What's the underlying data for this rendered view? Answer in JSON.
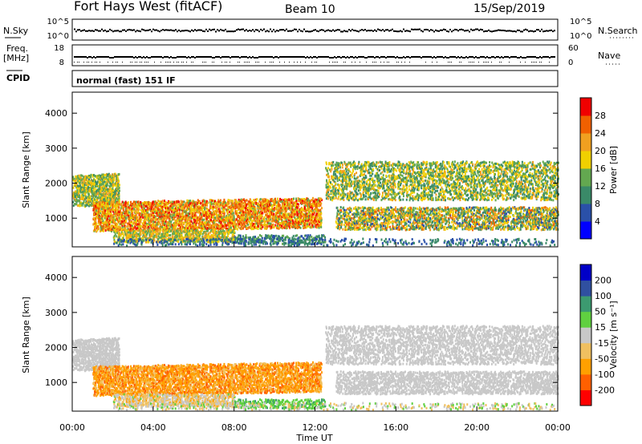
{
  "header": {
    "station": "Fort Hays West (fitACF)",
    "beam": "Beam 10",
    "date": "15/Sep/2019"
  },
  "noise_panel": {
    "left_label": "N.Sky",
    "right_label": "N.Search",
    "left_ticks": [
      "10^5",
      "10^0"
    ],
    "right_ticks": [
      "10^5",
      "10^0"
    ]
  },
  "freq_panel": {
    "left_label_1": "Freq.",
    "left_label_2": "[MHz]",
    "right_label": "Nave",
    "left_ticks": [
      "18",
      "8"
    ],
    "right_ticks": [
      "60",
      "0"
    ]
  },
  "cpid": {
    "label": "CPID",
    "text": "normal (fast) 151 IF"
  },
  "colors": {
    "power_scale": [
      "#0000ff",
      "#2a50a8",
      "#3a8a68",
      "#63a850",
      "#f0d000",
      "#f0a020",
      "#f06000",
      "#f00000"
    ],
    "velocity_scale": [
      "#ff0000",
      "#ff6000",
      "#ffa000",
      "#f0c060",
      "#c8c8c8",
      "#60d040",
      "#3c9a70",
      "#3050a0",
      "#0000c8"
    ]
  },
  "chart_data": [
    {
      "type": "heatmap",
      "name": "power",
      "ylabel": "Slant Range [km]",
      "yticks": [
        "4000",
        "3000",
        "2000",
        "1000"
      ],
      "ylim": [
        180,
        4600
      ],
      "xlim_hours": [
        0,
        24
      ],
      "colorbar": {
        "label": "Power [dB]",
        "ticks": [
          "28",
          "24",
          "20",
          "16",
          "12",
          "8",
          "4"
        ],
        "range": [
          0,
          32
        ]
      }
    },
    {
      "type": "heatmap",
      "name": "velocity",
      "ylabel": "Slant Range [km]",
      "yticks": [
        "4000",
        "3000",
        "2000",
        "1000"
      ],
      "ylim": [
        180,
        4600
      ],
      "xlim_hours": [
        0,
        24
      ],
      "xticks": [
        "00:00",
        "04:00",
        "08:00",
        "12:00",
        "16:00",
        "20:00",
        "00:00"
      ],
      "xlabel": "Time UT",
      "colorbar": {
        "label": "Velocity [m s⁻¹]",
        "ticks": [
          "200",
          "100",
          "50",
          "15",
          "-15",
          "-50",
          "-100",
          "-200"
        ]
      }
    }
  ]
}
